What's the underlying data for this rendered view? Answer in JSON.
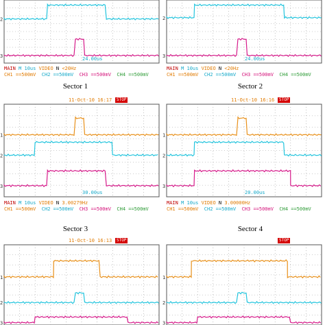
{
  "panels": [
    {
      "id": "s1",
      "label": "",
      "timestamp": "",
      "run": "",
      "trig_readout": "24.00us",
      "freq": "<20Hz",
      "mode": "VIDEO",
      "pos": "N",
      "timebase": "10us",
      "channels": [
        "CH1 ==500mV",
        "CH2 ==500mV",
        "CH3 ==500mV",
        "CH4 ==500mV"
      ],
      "traces": [
        {
          "ch": "ch2",
          "base": 0.3,
          "high": 0.08,
          "rise": 0.28,
          "fall": 0.66
        },
        {
          "ch": "ch3",
          "base": 0.88,
          "high": 0.62,
          "rise": 0.46,
          "fall": 0.52
        }
      ],
      "markers": [
        "2",
        "3"
      ]
    },
    {
      "id": "s2",
      "label": "",
      "timestamp": "",
      "run": "",
      "trig_readout": "24.00us",
      "freq": "<20Hz",
      "mode": "VIDEO",
      "pos": "N",
      "timebase": "10us",
      "channels": [
        "CH1 ==500mV",
        "CH2 ==500mV",
        "CH3 ==500mV",
        "CH4 ==500mV"
      ],
      "traces": [
        {
          "ch": "ch2",
          "base": 0.28,
          "high": 0.08,
          "rise": 0.18,
          "fall": 0.76
        },
        {
          "ch": "ch3",
          "base": 0.88,
          "high": 0.62,
          "rise": 0.46,
          "fall": 0.52
        }
      ],
      "markers": [
        "2",
        "3"
      ]
    },
    {
      "id": "s3",
      "label": "Sector 1",
      "timestamp": "11-Oct-10 16:17",
      "run": "STOP",
      "trig_readout": "30.00us",
      "freq": "3.00279Hz",
      "mode": "VIDEO",
      "pos": "N",
      "timebase": "10us",
      "channels": [
        "CH1 ==500mV",
        "CH2 ==500mV",
        "CH3 ==500mV",
        "CH4 ==500mV"
      ],
      "traces": [
        {
          "ch": "ch1",
          "base": 0.33,
          "high": 0.15,
          "rise": 0.46,
          "fall": 0.52
        },
        {
          "ch": "ch2",
          "base": 0.55,
          "high": 0.41,
          "rise": 0.2,
          "fall": 0.7
        },
        {
          "ch": "ch3",
          "base": 0.88,
          "high": 0.72,
          "rise": 0.28,
          "fall": 0.66
        }
      ],
      "markers": [
        "1",
        "2",
        "3"
      ]
    },
    {
      "id": "s4",
      "label": "Sector 2",
      "timestamp": "11-Oct-10 16:16",
      "run": "STOP",
      "trig_readout": "20.00us",
      "freq": "3.00000Hz",
      "mode": "VIDEO",
      "pos": "N",
      "timebase": "10us",
      "channels": [
        "CH1 ==500mV",
        "CH2 ==500mV",
        "CH3 ==500mV",
        "CH4 ==500mV"
      ],
      "traces": [
        {
          "ch": "ch1",
          "base": 0.33,
          "high": 0.15,
          "rise": 0.46,
          "fall": 0.52
        },
        {
          "ch": "ch2",
          "base": 0.55,
          "high": 0.41,
          "rise": 0.18,
          "fall": 0.76
        },
        {
          "ch": "ch3",
          "base": 0.88,
          "high": 0.72,
          "rise": 0.18,
          "fall": 0.8
        }
      ],
      "markers": [
        "1",
        "2",
        "3"
      ]
    },
    {
      "id": "s5",
      "label": "Sector 3",
      "timestamp": "11-Oct-10 16:13",
      "run": "STOP",
      "trig_readout": "",
      "freq": "",
      "mode": "",
      "pos": "",
      "timebase": "",
      "channels": [],
      "traces": [
        {
          "ch": "ch1",
          "base": 0.4,
          "high": 0.2,
          "rise": 0.32,
          "fall": 0.62
        },
        {
          "ch": "ch2",
          "base": 0.72,
          "high": 0.6,
          "rise": 0.46,
          "fall": 0.52
        },
        {
          "ch": "ch3",
          "base": 1.0,
          "high": 0.9,
          "rise": 0.2,
          "fall": 0.8
        }
      ],
      "markers": [
        "1",
        "2",
        "3"
      ]
    },
    {
      "id": "s6",
      "label": "Sector 4",
      "timestamp": "",
      "run": "STOP",
      "trig_readout": "",
      "freq": "",
      "mode": "",
      "pos": "",
      "timebase": "",
      "channels": [],
      "traces": [
        {
          "ch": "ch1",
          "base": 0.4,
          "high": 0.2,
          "rise": 0.16,
          "fall": 0.78
        },
        {
          "ch": "ch2",
          "base": 0.72,
          "high": 0.6,
          "rise": 0.46,
          "fall": 0.52
        },
        {
          "ch": "ch3",
          "base": 1.0,
          "high": 0.9,
          "rise": 0.2,
          "fall": 0.8
        }
      ],
      "markers": [
        "1",
        "2",
        "3"
      ]
    }
  ],
  "colors": {
    "ch1": "#e8901a",
    "ch2": "#22c4dd",
    "ch3": "#d61a8a",
    "ch4": "#3aa040",
    "grid": "#9a9a9a",
    "frame": "#555555"
  },
  "status_prefix": "MAIN",
  "sector_labels": [
    "Sector 1",
    "Sector 2",
    "Sector 3",
    "Sector 4"
  ]
}
